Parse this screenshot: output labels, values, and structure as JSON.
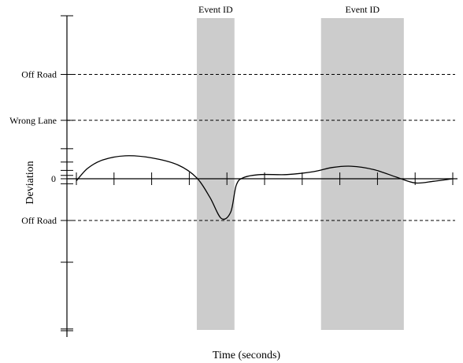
{
  "chart_data": {
    "type": "line",
    "title": "",
    "xlabel": "Time (seconds)",
    "ylabel": "Deviation",
    "xlim": [
      0,
      10
    ],
    "ylim": [
      -4,
      4
    ],
    "grid": false,
    "y_zero_label": "0",
    "reference_lines": [
      {
        "label": "Off Road",
        "y": 2.5
      },
      {
        "label": "Wrong Lane",
        "y": 1.4
      },
      {
        "label": "Off Road",
        "y": -1.0
      }
    ],
    "events": [
      {
        "label": "Event ID",
        "x_start": 3.2,
        "x_end": 4.2
      },
      {
        "label": "Event ID",
        "x_start": 6.5,
        "x_end": 8.7
      }
    ],
    "series": [
      {
        "x": [
          0,
          0.3,
          0.7,
          1.3,
          2.0,
          2.7,
          3.2,
          3.55,
          3.85,
          4.1,
          4.25,
          4.45,
          4.9,
          5.6,
          6.3,
          6.8,
          7.3,
          7.9,
          8.5,
          9.0,
          9.5,
          10.0
        ],
        "y": [
          -0.05,
          0.25,
          0.45,
          0.55,
          0.5,
          0.33,
          0.02,
          -0.45,
          -0.95,
          -0.8,
          -0.15,
          0.03,
          0.1,
          0.1,
          0.17,
          0.27,
          0.3,
          0.22,
          0.04,
          -0.1,
          -0.06,
          0.0
        ]
      }
    ]
  }
}
